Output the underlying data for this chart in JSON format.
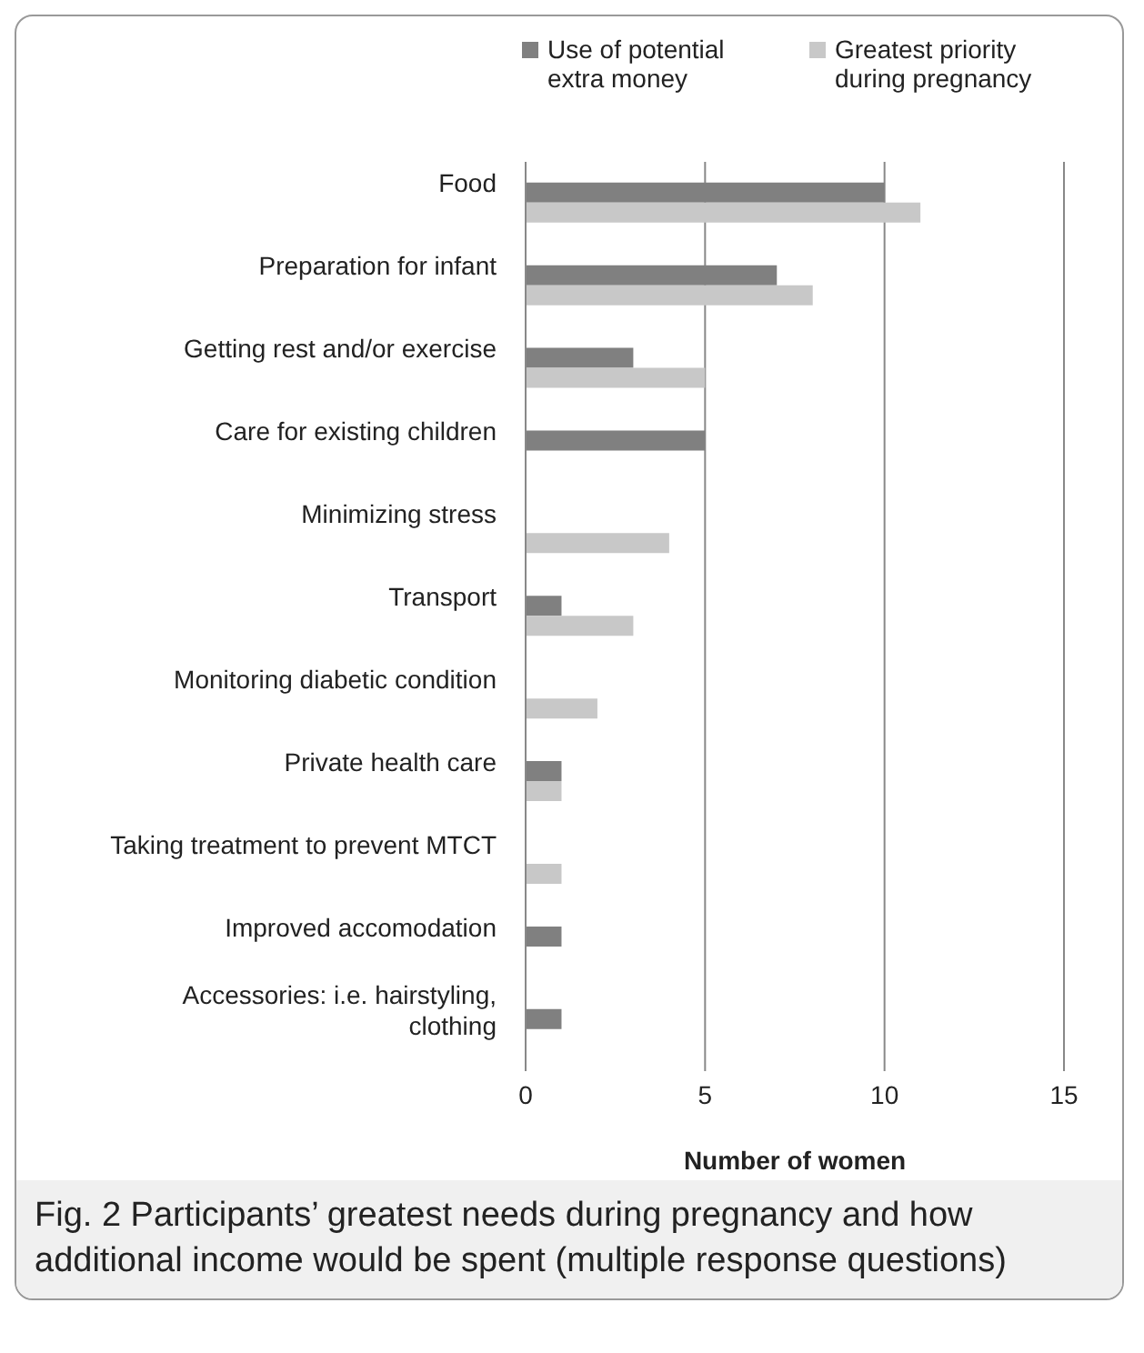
{
  "chart_data": {
    "type": "bar",
    "orientation": "horizontal",
    "xlabel": "Number of women",
    "categories": [
      "Food",
      "Preparation for infant",
      "Getting rest and/or exercise",
      "Care for existing children",
      "Minimizing stress",
      "Transport",
      "Monitoring diabetic condition",
      "Private health care",
      "Taking treatment to prevent MTCT",
      "Improved accomodation",
      "Accessories: i.e. hairstyling, clothing"
    ],
    "series": [
      {
        "name": "Use of potential extra money",
        "color": "#808080",
        "values": [
          10,
          7,
          3,
          5,
          null,
          1,
          null,
          1,
          null,
          1,
          1
        ]
      },
      {
        "name": "Greatest priority during pregnancy",
        "color": "#c8c8c8",
        "values": [
          11,
          8,
          5,
          null,
          4,
          3,
          2,
          1,
          1,
          null,
          null
        ]
      }
    ],
    "xlim": [
      0,
      15
    ],
    "xticks": [
      0,
      5,
      10,
      15
    ],
    "grid": "x",
    "legend": "top right",
    "annotations": [
      "Fig. 2 Participants’ greatest needs during pregnancy and how additional income would be spent (multiple response questions)"
    ]
  }
}
